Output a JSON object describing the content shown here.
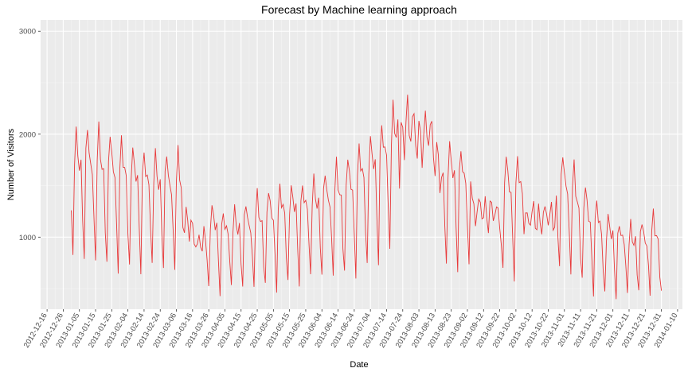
{
  "chart_data": {
    "type": "line",
    "title": "Forecast by Machine learning approach",
    "xlabel": "Date",
    "ylabel": "Number of Visitors",
    "x_ticks": [
      "2012-12-16",
      "2012-12-26",
      "2013-01-05",
      "2013-01-15",
      "2013-01-25",
      "2013-02-04",
      "2013-02-14",
      "2013-02-24",
      "2013-03-06",
      "2013-03-16",
      "2013-03-26",
      "2013-04-05",
      "2013-04-15",
      "2013-04-25",
      "2013-05-05",
      "2013-05-15",
      "2013-05-25",
      "2013-06-04",
      "2013-06-14",
      "2013-06-24",
      "2013-07-04",
      "2013-07-14",
      "2013-07-24",
      "2013-08-03",
      "2013-08-13",
      "2013-08-23",
      "2013-09-02",
      "2013-09-12",
      "2013-09-22",
      "2013-10-02",
      "2013-10-12",
      "2013-10-22",
      "2013-11-01",
      "2013-11-11",
      "2013-11-21",
      "2013-12-01",
      "2013-12-11",
      "2013-12-21",
      "2013-12-31",
      "2014-01-10"
    ],
    "y_ticks": [
      1000,
      2000,
      3000
    ],
    "xlim": [
      "2012-12-12",
      "2014-01-13"
    ],
    "ylim": [
      300,
      3110
    ],
    "grid": true,
    "line_color": "#e8393a",
    "series": [
      {
        "x_start": "2012-12-31",
        "x_end": "2013-12-31",
        "weekly_profile": [
          1750,
          2050,
          1800,
          1700,
          1680,
          1150,
          760
        ],
        "y": []
      }
    ]
  }
}
